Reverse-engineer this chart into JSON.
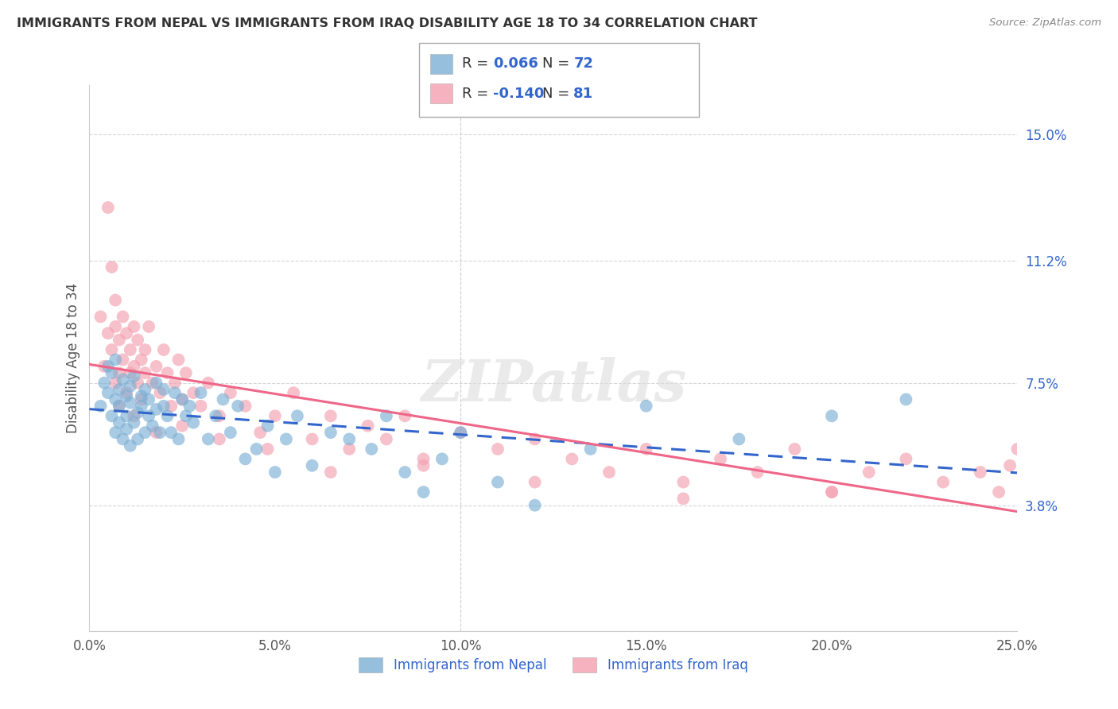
{
  "title": "IMMIGRANTS FROM NEPAL VS IMMIGRANTS FROM IRAQ DISABILITY AGE 18 TO 34 CORRELATION CHART",
  "source": "Source: ZipAtlas.com",
  "ylabel": "Disability Age 18 to 34",
  "xlim": [
    0.0,
    0.25
  ],
  "ylim": [
    0.0,
    0.165
  ],
  "xticks": [
    0.0,
    0.05,
    0.1,
    0.15,
    0.2,
    0.25
  ],
  "xticklabels": [
    "0.0%",
    "5.0%",
    "10.0%",
    "15.0%",
    "20.0%",
    "25.0%"
  ],
  "ytick_positions": [
    0.038,
    0.075,
    0.112,
    0.15
  ],
  "ytick_labels": [
    "3.8%",
    "7.5%",
    "11.2%",
    "15.0%"
  ],
  "nepal_R": 0.066,
  "nepal_N": 72,
  "iraq_R": -0.14,
  "iraq_N": 81,
  "nepal_color": "#7BAFD4",
  "iraq_color": "#F4A0B0",
  "nepal_line_color": "#3366CC",
  "iraq_line_color": "#EE6688",
  "watermark": "ZIPatlas",
  "legend_nepal": "Immigrants from Nepal",
  "legend_iraq": "Immigrants from Iraq",
  "nepal_x": [
    0.003,
    0.004,
    0.005,
    0.005,
    0.006,
    0.006,
    0.007,
    0.007,
    0.007,
    0.008,
    0.008,
    0.008,
    0.009,
    0.009,
    0.01,
    0.01,
    0.01,
    0.011,
    0.011,
    0.011,
    0.012,
    0.012,
    0.013,
    0.013,
    0.014,
    0.014,
    0.015,
    0.015,
    0.016,
    0.016,
    0.017,
    0.018,
    0.018,
    0.019,
    0.02,
    0.02,
    0.021,
    0.022,
    0.023,
    0.024,
    0.025,
    0.026,
    0.027,
    0.028,
    0.03,
    0.032,
    0.034,
    0.036,
    0.038,
    0.04,
    0.042,
    0.045,
    0.048,
    0.05,
    0.053,
    0.056,
    0.06,
    0.065,
    0.07,
    0.076,
    0.08,
    0.085,
    0.09,
    0.095,
    0.1,
    0.11,
    0.12,
    0.135,
    0.15,
    0.175,
    0.2,
    0.22
  ],
  "nepal_y": [
    0.068,
    0.075,
    0.072,
    0.08,
    0.065,
    0.078,
    0.06,
    0.07,
    0.082,
    0.063,
    0.073,
    0.068,
    0.058,
    0.076,
    0.061,
    0.071,
    0.065,
    0.069,
    0.074,
    0.056,
    0.063,
    0.077,
    0.066,
    0.058,
    0.071,
    0.068,
    0.073,
    0.06,
    0.065,
    0.07,
    0.062,
    0.067,
    0.075,
    0.06,
    0.068,
    0.073,
    0.065,
    0.06,
    0.072,
    0.058,
    0.07,
    0.065,
    0.068,
    0.063,
    0.072,
    0.058,
    0.065,
    0.07,
    0.06,
    0.068,
    0.052,
    0.055,
    0.062,
    0.048,
    0.058,
    0.065,
    0.05,
    0.06,
    0.058,
    0.055,
    0.065,
    0.048,
    0.042,
    0.052,
    0.06,
    0.045,
    0.038,
    0.055,
    0.068,
    0.058,
    0.065,
    0.07
  ],
  "iraq_x": [
    0.003,
    0.004,
    0.005,
    0.005,
    0.006,
    0.006,
    0.007,
    0.007,
    0.007,
    0.008,
    0.008,
    0.009,
    0.009,
    0.01,
    0.01,
    0.011,
    0.011,
    0.012,
    0.012,
    0.013,
    0.013,
    0.014,
    0.014,
    0.015,
    0.015,
    0.016,
    0.017,
    0.018,
    0.019,
    0.02,
    0.021,
    0.022,
    0.023,
    0.024,
    0.025,
    0.026,
    0.028,
    0.03,
    0.032,
    0.035,
    0.038,
    0.042,
    0.046,
    0.05,
    0.055,
    0.06,
    0.065,
    0.07,
    0.075,
    0.08,
    0.085,
    0.09,
    0.1,
    0.11,
    0.12,
    0.13,
    0.14,
    0.15,
    0.16,
    0.17,
    0.18,
    0.19,
    0.2,
    0.21,
    0.22,
    0.23,
    0.24,
    0.245,
    0.248,
    0.25,
    0.008,
    0.012,
    0.018,
    0.025,
    0.035,
    0.048,
    0.065,
    0.09,
    0.12,
    0.16,
    0.2
  ],
  "iraq_y": [
    0.095,
    0.08,
    0.128,
    0.09,
    0.085,
    0.11,
    0.092,
    0.075,
    0.1,
    0.088,
    0.078,
    0.095,
    0.082,
    0.09,
    0.072,
    0.085,
    0.078,
    0.08,
    0.092,
    0.075,
    0.088,
    0.082,
    0.07,
    0.085,
    0.078,
    0.092,
    0.075,
    0.08,
    0.072,
    0.085,
    0.078,
    0.068,
    0.075,
    0.082,
    0.07,
    0.078,
    0.072,
    0.068,
    0.075,
    0.065,
    0.072,
    0.068,
    0.06,
    0.065,
    0.072,
    0.058,
    0.065,
    0.055,
    0.062,
    0.058,
    0.065,
    0.052,
    0.06,
    0.055,
    0.058,
    0.052,
    0.048,
    0.055,
    0.045,
    0.052,
    0.048,
    0.055,
    0.042,
    0.048,
    0.052,
    0.045,
    0.048,
    0.042,
    0.05,
    0.055,
    0.068,
    0.065,
    0.06,
    0.062,
    0.058,
    0.055,
    0.048,
    0.05,
    0.045,
    0.04,
    0.042
  ]
}
